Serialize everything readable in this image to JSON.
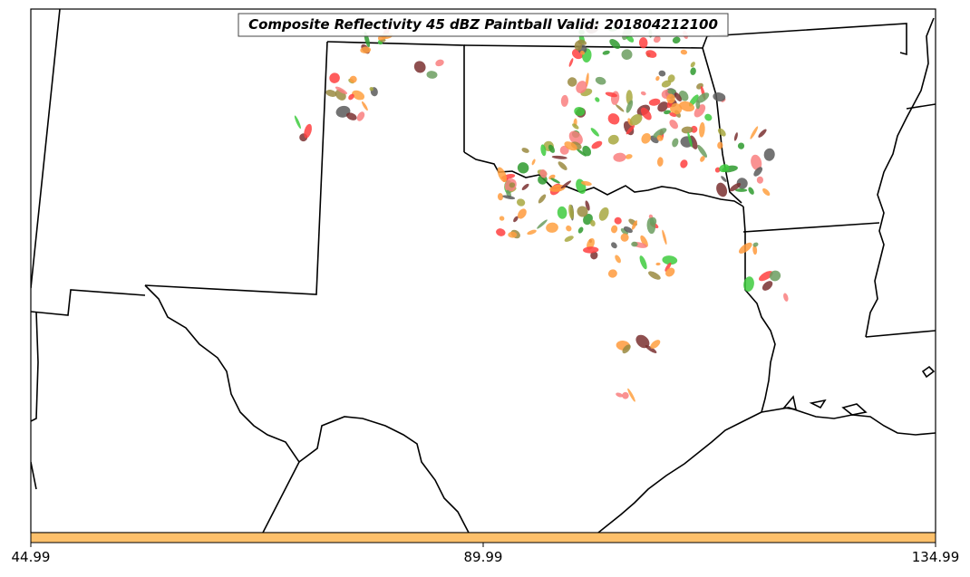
{
  "map": {
    "title": "Composite Reflectivity 45 dBZ Paintball Valid: 201804212100",
    "colors": {
      "background": "#ffffff",
      "border": "#000000",
      "colorbar": "#fdc06b",
      "paintball": [
        "#f97f7f",
        "#ff4040",
        "#ffa040",
        "#ff9a3c",
        "#6b9e5f",
        "#3ecb3e",
        "#2e9a2e",
        "#a8a840",
        "#7a3030",
        "#5a5a5a",
        "#9a8a40"
      ]
    },
    "colorbar": {
      "ticks": [
        "44.99",
        "89.99",
        "134.99"
      ]
    }
  }
}
